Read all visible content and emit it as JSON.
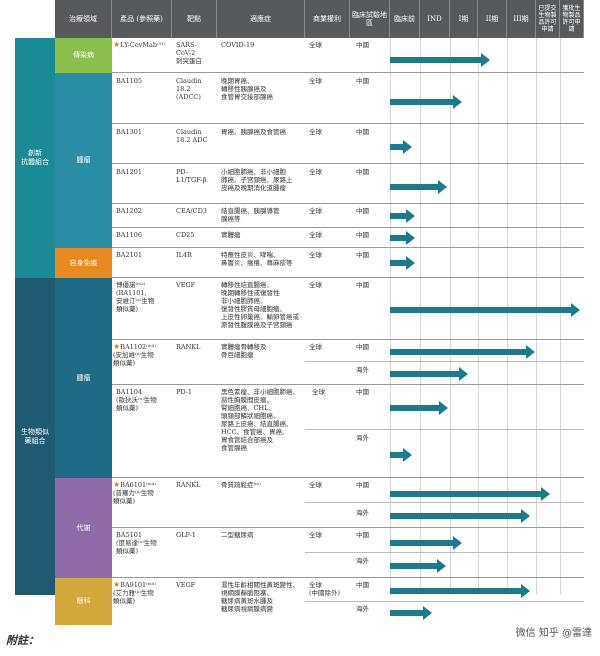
{
  "headers": [
    "治療領域",
    "產品 (參照藥)",
    "靶點",
    "適應症",
    "商業權利",
    "臨床試驗地區",
    "臨床前",
    "IND",
    "I期",
    "II期",
    "III期",
    "已提交生物製品許可申請",
    "獲批生物製品許可申請"
  ],
  "categories": {
    "innov": "創新\n抗體組合",
    "bio": "生物類似\n藥組合",
    "infect": "傳染病",
    "tumor1": "腫瘤",
    "autoimm": "自身免疫",
    "tumor2": "腫瘤",
    "metab": "代謝",
    "ophth": "眼科"
  },
  "colors": {
    "innov": "#1b8a97",
    "bio": "#1e5a72",
    "infect": "#8bbf4c",
    "tumor1": "#2a8ea6",
    "autoimm": "#e98a1f",
    "tumor2": "#1f6a86",
    "metab": "#8e6ba8",
    "ophth": "#d2a83a",
    "arrow": "#1a7c8a"
  },
  "rows": [
    {
      "product": "LY-CovMab⁽¹¹⁾",
      "star": true,
      "target": "SARS-\nCoV-2\n刺突蛋白",
      "indication": "COVID-19",
      "rights": "全球",
      "region": "中國"
    },
    {
      "product": "BA1105",
      "target": "Claudin\n18.2\n(ADCC)",
      "indication": "晚期胃癌、\n轉移性胰腺癌及\n食管胃交接部腺癌",
      "rights": "全球",
      "region": "中國"
    },
    {
      "product": "BA1301",
      "target": "Claudin\n18.2 ADC",
      "indication": "胃癌、胰腺癌及食管癌",
      "rights": "全球",
      "region": "中國"
    },
    {
      "product": "BA1201",
      "target": "PD-\nL1/TGF-β",
      "indication": "小細胞肺癌、非小細胞\n肺癌、子宮頸癌、尿路上\n皮癌及晚期消化道腫瘤",
      "rights": "全球",
      "region": "中國"
    },
    {
      "product": "BA1202",
      "target": "CEA/CD3",
      "indication": "結直腸癌、胰腺導管\n腺癌等",
      "rights": "全球",
      "region": "中國"
    },
    {
      "product": "BA1106",
      "target": "CD25",
      "indication": "實體瘤",
      "rights": "全球",
      "region": "中國"
    },
    {
      "product": "BA2101",
      "target": "IL4R",
      "indication": "特應性皮炎、哮喘、\n鼻竇炎、瘙癢、蕁麻疹等",
      "rights": "全球",
      "region": "中國"
    },
    {
      "product": "博優諾⁽ᵐ²⁾\n(BA1101,\n安維汀⁽ᵃ⁾生物\n類似藥)",
      "target": "VEGF",
      "indication": "轉移性結直腸癌、\n晚期轉移性或復發性\n非小細胞肺癌、\n復發性膠質母細胞瘤、\n上皮性卵巢癌、輸卵管癌或\n原發性腹膜癌及子宮頸癌",
      "rights": "全球",
      "region": "中國"
    },
    {
      "product": "BA1102⁽ᵐ³⁾\n(安加維⁽ᵃ⁾生物\n類似藥)",
      "star": true,
      "target": "RANKL",
      "indication": "實體瘤骨轉移及\n骨巨細胞瘤",
      "rights": "全球",
      "region": "中國",
      "region2": "海外"
    },
    {
      "product": "BA1104\n(歐狄沃⁽ᵃ⁾生物\n類似藥)",
      "target": "PD-1",
      "indication": "黑色素瘤、非小細胞肺癌、\n惡性胸膜間皮瘤、\n腎細胞癌、CHL、\n頭頸部鱗狀細胞癌、\n尿路上皮癌、結直腸癌、\nHCC、食管癌、胃癌、\n胃食管結合部癌及\n食管腺癌",
      "rights": "全球",
      "region": "中國",
      "region2": "海外"
    },
    {
      "product": "BA6101⁽ᵐ⁴⁾\n(普羅力⁽ᵃ⁾生物\n類似藥)",
      "star": true,
      "target": "RANKL",
      "indication": "骨質疏鬆症⁽ᵐ⁾",
      "rights": "全球",
      "region": "中國",
      "region2": "海外"
    },
    {
      "product": "BA5101\n(度易達⁽ᵃ⁾生物\n類似藥)",
      "target": "GLP-1",
      "indication": "二型糖尿病",
      "rights": "全球",
      "region": "中國",
      "region2": "海外"
    },
    {
      "product": "BA9101⁽ᵐ⁵⁾\n(艾力雅⁽ᵃ⁾生物\n類似藥)",
      "star": true,
      "target": "VEGF",
      "indication": "濕性年齡相關性黃斑變性、\n視網膜靜脈阻塞、\n糖尿病黃斑水腫及\n糖尿病視網膜病變",
      "rights": "全球\n(中國除外)",
      "region": "中國",
      "region2": "海外"
    }
  ],
  "footnote": "附註：",
  "watermark": "微信 知乎 @雷達"
}
